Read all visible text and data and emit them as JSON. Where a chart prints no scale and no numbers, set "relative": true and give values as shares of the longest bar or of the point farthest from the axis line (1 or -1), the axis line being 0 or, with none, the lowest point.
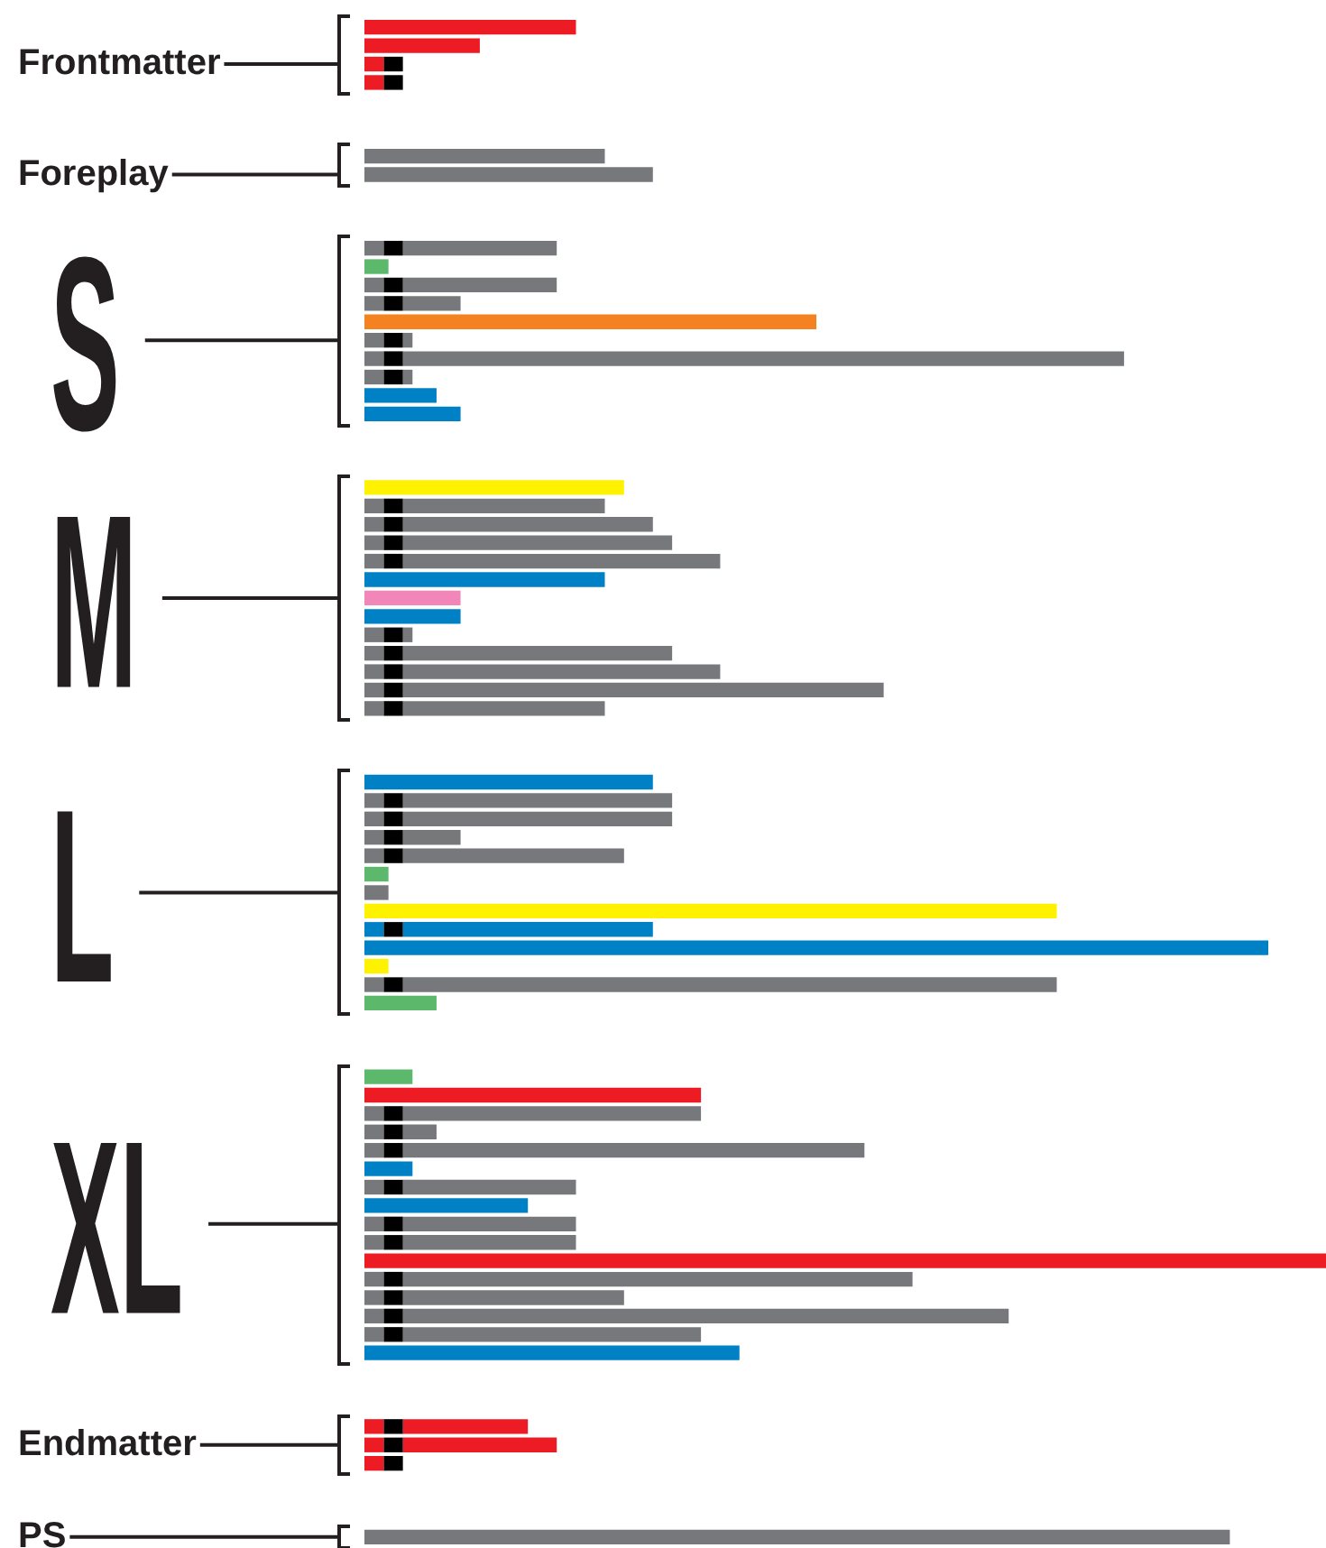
{
  "chart_data": {
    "type": "bar",
    "orientation": "horizontal",
    "stacked": true,
    "relative": true,
    "categories": [
      null,
      null,
      "Frontmatter",
      null,
      null,
      null,
      null,
      null,
      "Foreplay",
      null,
      null,
      null,
      null,
      null,
      null,
      null,
      null,
      "S",
      null,
      null,
      null,
      null,
      null,
      null,
      null,
      null,
      null,
      null,
      null,
      null,
      null,
      "M",
      null,
      null,
      null,
      null,
      null,
      null,
      null,
      null,
      null,
      null,
      null,
      null,
      null,
      null,
      null,
      "L",
      null,
      null,
      null,
      null,
      null,
      null,
      null,
      null,
      null,
      null,
      null,
      null,
      null,
      null,
      null,
      null,
      null,
      "XL",
      null,
      null,
      null,
      null,
      null,
      null,
      null,
      null,
      null,
      null,
      null,
      "Endmatter",
      null,
      null,
      null,
      null,
      "PS"
    ],
    "series": [
      {
        "values": [
          0.22,
          0.12,
          0.02,
          0.02,
          null,
          null,
          null,
          0.25,
          0.3,
          null,
          null,
          null,
          0.02,
          0.025,
          0.02,
          0.02,
          0.47,
          0.02,
          0.02,
          0.02,
          0.075,
          0.1,
          null,
          null,
          null,
          0.27,
          0.02,
          0.02,
          0.02,
          0.02,
          0.25,
          0.1,
          0.1,
          0.02,
          0.02,
          0.02,
          0.02,
          0.02,
          null,
          null,
          null,
          0.3,
          0.02,
          0.02,
          0.02,
          0.02,
          0.025,
          0.025,
          0.72,
          0.02,
          0.94,
          0.025,
          0.02,
          0.075,
          null,
          null,
          null,
          0.05,
          0.35,
          0.02,
          0.02,
          0.02,
          0.05,
          0.02,
          0.17,
          0.02,
          0.02,
          1,
          0.02,
          0.02,
          0.02,
          0.02,
          0.39,
          null,
          null,
          null,
          0.02,
          0.02,
          0.02,
          null,
          null,
          null,
          0.9
        ],
        "colors": [
          "#ed1c24",
          "#ed1c24",
          "#ed1c24",
          "#ed1c24",
          null,
          null,
          null,
          "#77787b",
          "#77787b",
          null,
          null,
          null,
          "#77787b",
          "#5cb96b",
          "#77787b",
          "#77787b",
          "#f58220",
          "#77787b",
          "#77787b",
          "#77787b",
          "#0081c6",
          "#0081c6",
          null,
          null,
          null,
          "#fff200",
          "#77787b",
          "#77787b",
          "#77787b",
          "#77787b",
          "#0081c6",
          "#f386b8",
          "#0081c6",
          "#77787b",
          "#77787b",
          "#77787b",
          "#77787b",
          "#77787b",
          null,
          null,
          null,
          "#0081c6",
          "#77787b",
          "#77787b",
          "#77787b",
          "#77787b",
          "#5cb96b",
          "#77787b",
          "#fff200",
          "#0081c6",
          "#0081c6",
          "#fff200",
          "#77787b",
          "#5cb96b",
          null,
          null,
          null,
          "#5cb96b",
          "#ed1c24",
          "#77787b",
          "#77787b",
          "#77787b",
          "#0081c6",
          "#77787b",
          "#0081c6",
          "#77787b",
          "#77787b",
          "#ed1c24",
          "#77787b",
          "#77787b",
          "#77787b",
          "#77787b",
          "#0081c6",
          null,
          null,
          null,
          "#ed1c24",
          "#ed1c24",
          "#ed1c24",
          null,
          null,
          null,
          "#77787b"
        ]
      },
      {
        "color": "#000000",
        "values": [
          null,
          null,
          0.02,
          0.02,
          null,
          null,
          null,
          null,
          null,
          null,
          null,
          null,
          0.02,
          null,
          0.02,
          0.02,
          null,
          0.02,
          0.02,
          0.02,
          null,
          null,
          null,
          null,
          null,
          null,
          0.02,
          0.02,
          0.02,
          0.02,
          null,
          null,
          null,
          0.02,
          0.02,
          0.02,
          0.02,
          0.02,
          null,
          null,
          null,
          null,
          0.02,
          0.02,
          0.02,
          0.02,
          null,
          null,
          null,
          0.02,
          null,
          null,
          0.02,
          null,
          null,
          null,
          null,
          null,
          null,
          0.02,
          0.02,
          0.02,
          null,
          0.02,
          null,
          0.02,
          0.02,
          null,
          0.02,
          0.02,
          0.02,
          0.02,
          null,
          null,
          null,
          null,
          0.02,
          0.02,
          0.02,
          null,
          null,
          null,
          null
        ]
      },
      {
        "values": [
          null,
          null,
          null,
          null,
          null,
          null,
          null,
          null,
          null,
          null,
          null,
          null,
          0.16,
          null,
          0.16,
          0.06,
          null,
          0.01,
          0.75,
          0.01,
          null,
          null,
          null,
          null,
          null,
          null,
          0.21,
          0.26,
          0.28,
          0.33,
          null,
          null,
          null,
          0.01,
          0.28,
          0.33,
          0.5,
          0.21,
          null,
          null,
          null,
          null,
          0.28,
          0.28,
          0.06,
          0.23,
          null,
          null,
          null,
          0.26,
          null,
          null,
          0.68,
          null,
          null,
          null,
          null,
          null,
          null,
          0.31,
          0.035,
          0.48,
          null,
          0.18,
          null,
          0.18,
          0.18,
          null,
          0.53,
          0.23,
          0.63,
          0.31,
          null,
          null,
          null,
          null,
          0.13,
          0.16,
          null,
          null,
          null,
          null,
          null
        ],
        "colors": [
          null,
          null,
          null,
          null,
          null,
          null,
          null,
          null,
          null,
          null,
          null,
          null,
          "#77787b",
          null,
          "#77787b",
          "#77787b",
          null,
          "#77787b",
          "#77787b",
          "#77787b",
          null,
          null,
          null,
          null,
          null,
          null,
          "#77787b",
          "#77787b",
          "#77787b",
          "#77787b",
          null,
          null,
          null,
          "#77787b",
          "#77787b",
          "#77787b",
          "#77787b",
          "#77787b",
          null,
          null,
          null,
          null,
          "#77787b",
          "#77787b",
          "#77787b",
          "#77787b",
          null,
          null,
          null,
          "#0081c6",
          null,
          null,
          "#77787b",
          null,
          null,
          null,
          null,
          null,
          null,
          "#77787b",
          "#77787b",
          "#77787b",
          null,
          "#77787b",
          null,
          "#77787b",
          "#77787b",
          null,
          "#77787b",
          "#77787b",
          "#77787b",
          "#77787b",
          null,
          null,
          null,
          null,
          "#ed1c24",
          "#ed1c24",
          null,
          null,
          null,
          null,
          null
        ]
      }
    ]
  }
}
